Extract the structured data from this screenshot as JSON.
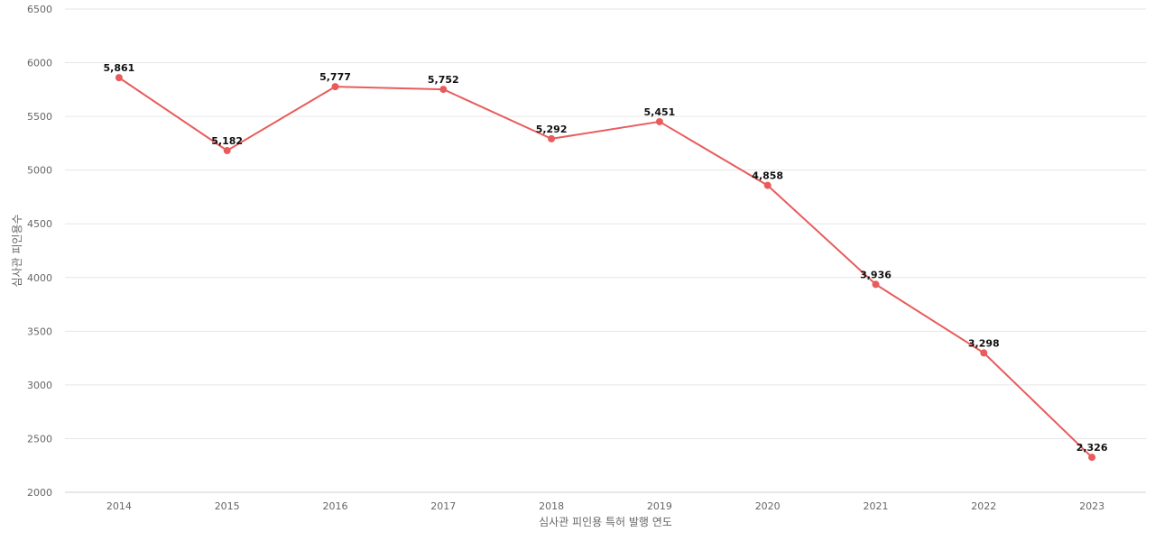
{
  "chart_data": {
    "type": "line",
    "title": "",
    "xlabel": "심사관 피인용 특허 발행 연도",
    "ylabel": "심사관 피인용수",
    "categories": [
      "2014",
      "2015",
      "2016",
      "2017",
      "2018",
      "2019",
      "2020",
      "2021",
      "2022",
      "2023"
    ],
    "series": [
      {
        "name": "심사관 피인용수",
        "values": [
          5861,
          5182,
          5777,
          5752,
          5292,
          5451,
          4858,
          3936,
          3298,
          2326
        ],
        "labels": [
          "5,861",
          "5,182",
          "5,777",
          "5,752",
          "5,292",
          "5,451",
          "4,858",
          "3,936",
          "3,298",
          "2,326"
        ],
        "color": "#e85c5c"
      }
    ],
    "ylim": [
      2000,
      6500
    ],
    "yticks": [
      "2000",
      "2500",
      "3000",
      "3500",
      "4000",
      "4500",
      "5000",
      "5500",
      "6000",
      "6500"
    ],
    "grid": true,
    "legend": "none"
  }
}
